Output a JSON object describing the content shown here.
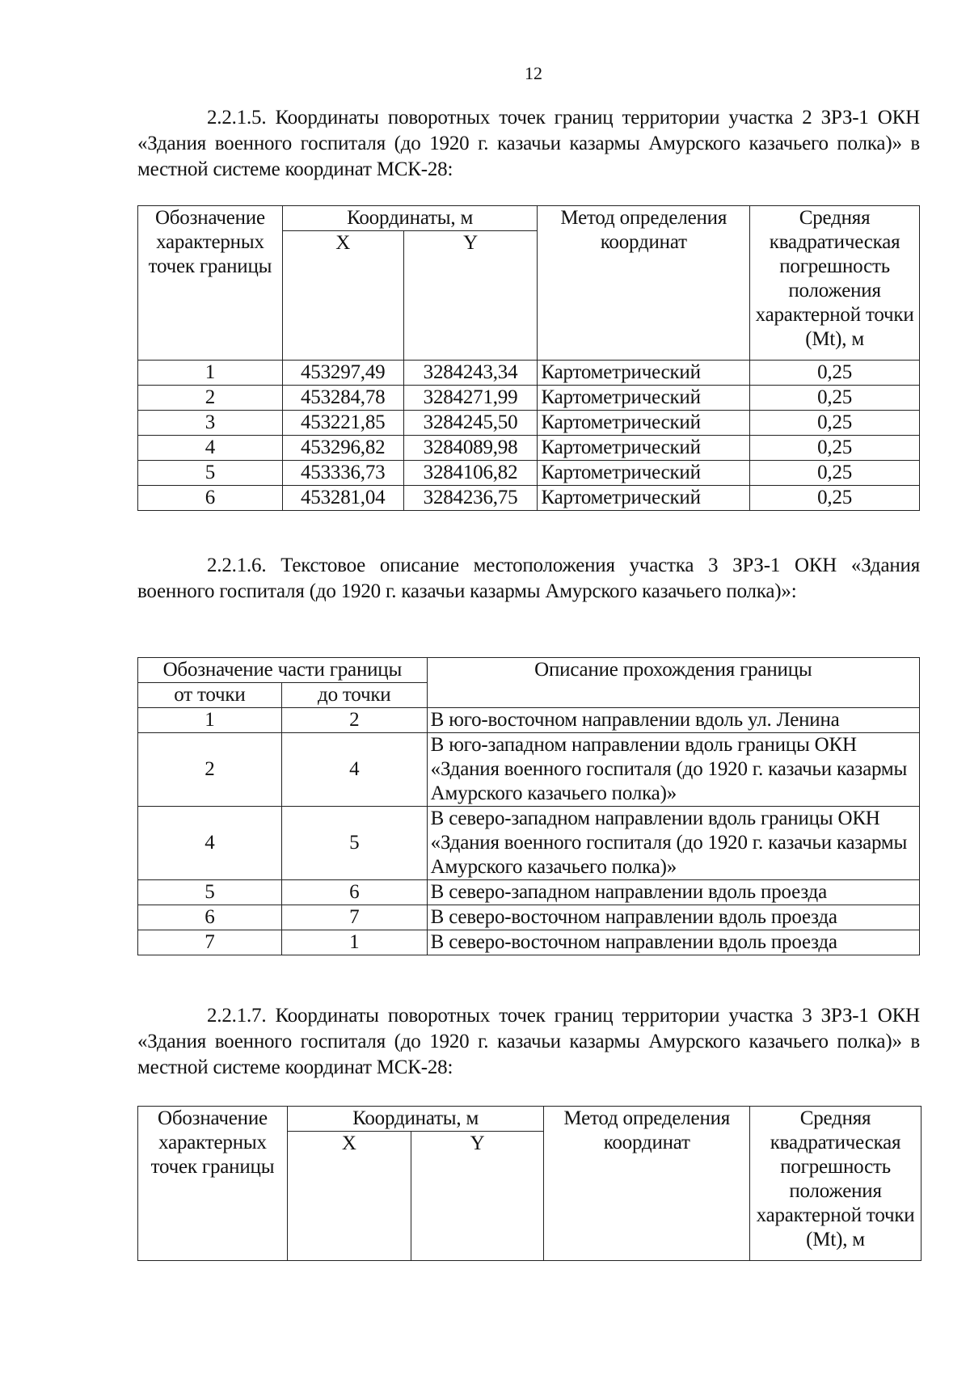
{
  "page_number": "12",
  "section1": {
    "number": "2.2.1.5.",
    "text": "Координаты поворотных точек границ территории участка 2 ЗРЗ-1 ОКН «Здания военного госпиталя (до 1920 г. казачьи казармы Амурского казачьего полка)» в местной системе координат МСК-28:"
  },
  "table1": {
    "headers": {
      "point": "Обозначение характерных точек границы",
      "coords": "Координаты, м",
      "x": "X",
      "y": "Y",
      "method": "Метод определения координат",
      "error": "Средняя квадратическая погрешность положения характерной точки (Mt), м"
    },
    "rows": [
      [
        "1",
        "453297,49",
        "3284243,34",
        "Картометрический",
        "0,25"
      ],
      [
        "2",
        "453284,78",
        "3284271,99",
        "Картометрический",
        "0,25"
      ],
      [
        "3",
        "453221,85",
        "3284245,50",
        "Картометрический",
        "0,25"
      ],
      [
        "4",
        "453296,82",
        "3284089,98",
        "Картометрический",
        "0,25"
      ],
      [
        "5",
        "453336,73",
        "3284106,82",
        "Картометрический",
        "0,25"
      ],
      [
        "6",
        "453281,04",
        "3284236,75",
        "Картометрический",
        "0,25"
      ]
    ]
  },
  "section2": {
    "number": "2.2.1.6.",
    "text": "Текстовое описание местоположения участка 3 ЗРЗ-1 ОКН «Здания военного госпиталя (до 1920 г. казачьи казармы Амурского казачьего полка)»:"
  },
  "table2": {
    "headers": {
      "part": "Обозначение части границы",
      "from": "от точки",
      "to": "до точки",
      "description": "Описание прохождения границы"
    },
    "rows": [
      [
        "1",
        "2",
        "В юго-восточном направлении вдоль ул. Ленина"
      ],
      [
        "2",
        "4",
        "В юго-западном направлении вдоль границы ОКН «Здания военного госпиталя (до 1920 г. казачьи казармы Амурского казачьего полка)»"
      ],
      [
        "4",
        "5",
        "В северо-западном направлении вдоль границы ОКН «Здания военного госпиталя (до 1920 г. казачьи казармы Амурского казачьего полка)»"
      ],
      [
        "5",
        "6",
        "В северо-западном направлении вдоль проезда"
      ],
      [
        "6",
        "7",
        "В северо-восточном направлении вдоль проезда"
      ],
      [
        "7",
        "1",
        "В северо-восточном направлении вдоль проезда"
      ]
    ]
  },
  "section3": {
    "number": "2.2.1.7.",
    "text": "Координаты поворотных точек границ территории участка 3 ЗРЗ-1 ОКН «Здания военного госпиталя (до 1920 г. казачьи казармы Амурского казачьего полка)» в местной системе координат МСК-28:"
  },
  "table3": {
    "headers": {
      "point": "Обозначение характерных точек границы",
      "coords": "Координаты, м",
      "x": "X",
      "y": "Y",
      "method": "Метод определения координат",
      "error": "Средняя квадратическая погрешность положения характерной точки (Mt), м"
    }
  }
}
